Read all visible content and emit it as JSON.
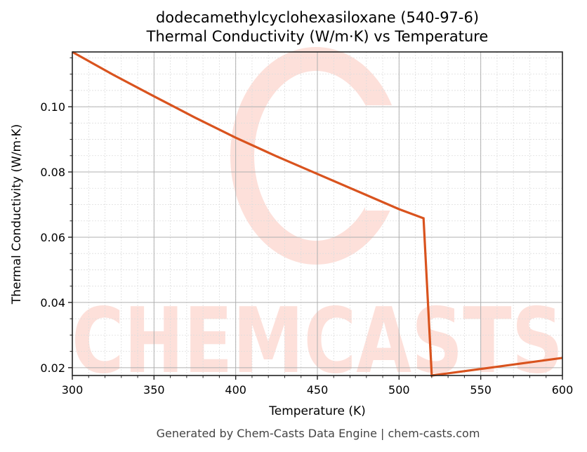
{
  "title": {
    "line1": "dodecamethylcyclohexasiloxane (540-97-6)",
    "line2": "Thermal Conductivity (W/m·K) vs Temperature"
  },
  "axes": {
    "xlabel": "Temperature (K)",
    "ylabel": "Thermal Conductivity (W/m·K)"
  },
  "footer": "Generated by Chem-Casts Data Engine | chem-casts.com",
  "watermark": "CHEMCASTS",
  "colors": {
    "line": "#d9531e",
    "watermark": "#fde0da",
    "major_grid": "#b0b0b0",
    "minor_grid": "#dddddd",
    "axis": "#222222"
  },
  "chart_data": {
    "type": "line",
    "title": "dodecamethylcyclohexasiloxane (540-97-6)\nThermal Conductivity (W/m·K) vs Temperature",
    "xlabel": "Temperature (K)",
    "ylabel": "Thermal Conductivity (W/m·K)",
    "xlim": [
      300,
      600
    ],
    "ylim": [
      0.0176,
      0.1168
    ],
    "x_ticks": [
      300,
      350,
      400,
      450,
      500,
      550,
      600
    ],
    "x_tick_labels": [
      "300",
      "350",
      "400",
      "450",
      "500",
      "550",
      "600"
    ],
    "y_ticks": [
      0.02,
      0.04,
      0.06,
      0.08,
      0.1
    ],
    "y_tick_labels": [
      "0.02",
      "0.04",
      "0.06",
      "0.08",
      "0.10"
    ],
    "grid": true,
    "minor_grid": true,
    "legend": null,
    "series": [
      {
        "name": "Thermal Conductivity",
        "x": [
          300,
          325,
          350,
          375,
          400,
          425,
          450,
          475,
          500,
          515,
          520,
          550,
          575,
          600
        ],
        "values": [
          0.1168,
          0.1098,
          0.1032,
          0.0967,
          0.0905,
          0.0848,
          0.0794,
          0.074,
          0.0686,
          0.0658,
          0.0176,
          0.0196,
          0.0213,
          0.023
        ]
      }
    ]
  }
}
